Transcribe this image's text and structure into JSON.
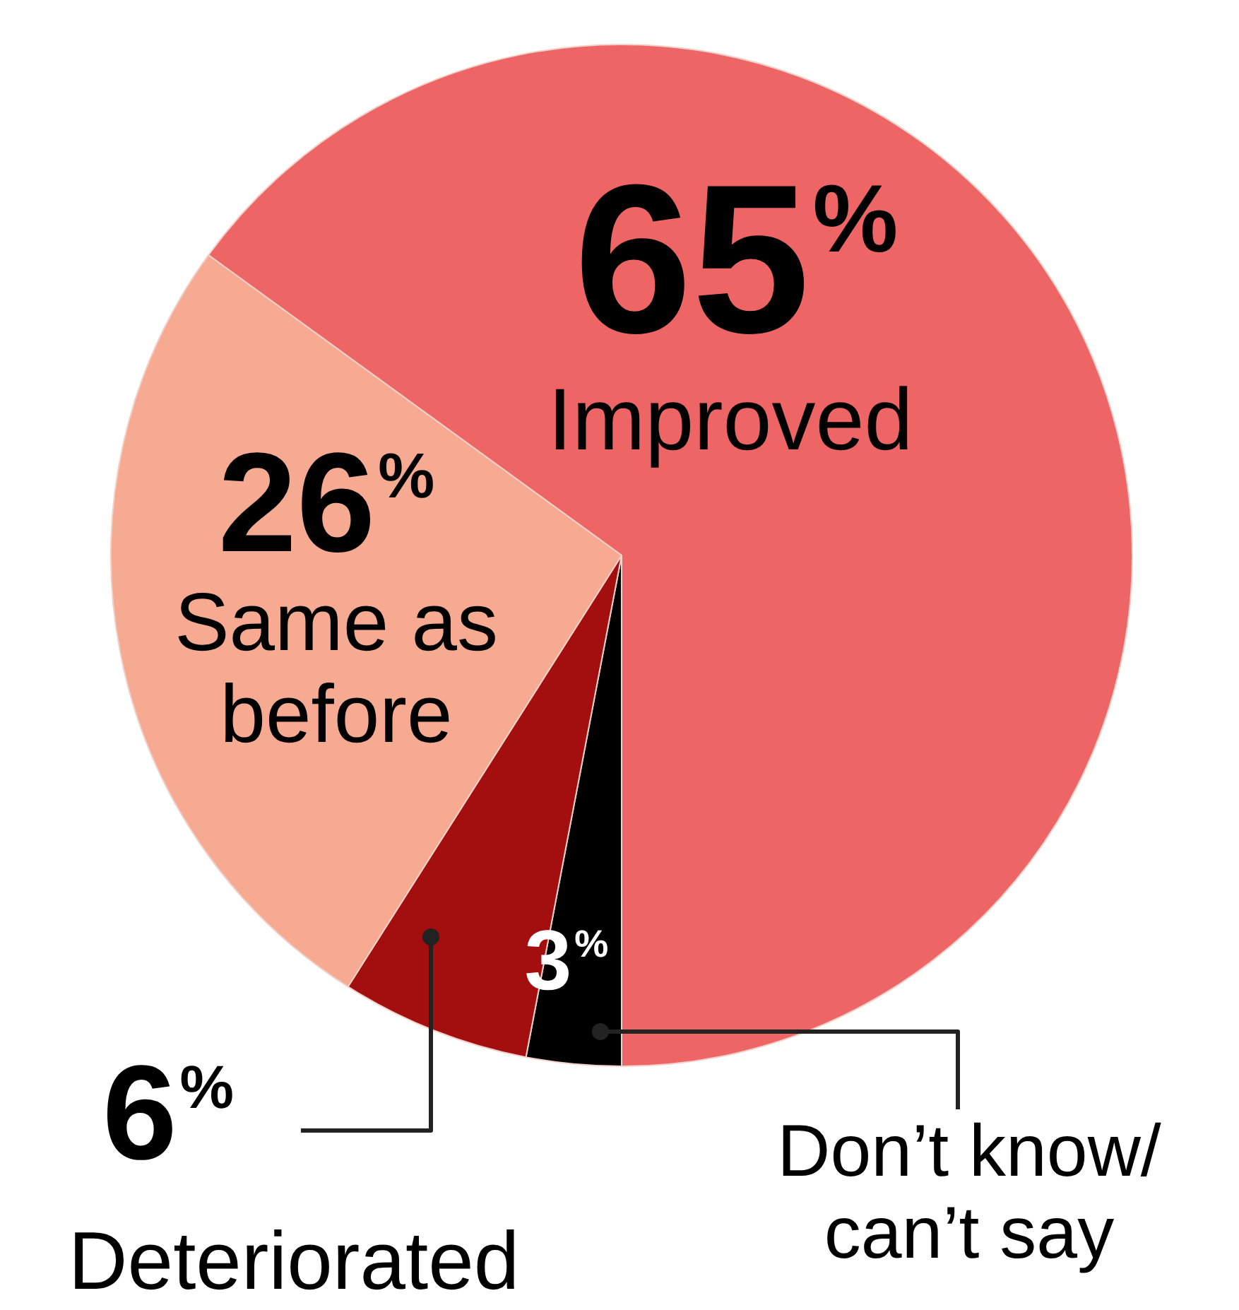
{
  "chart_data": {
    "type": "pie",
    "categories": [
      "Improved",
      "Don’t know/ can’t say",
      "Deteriorated",
      "Same as before"
    ],
    "values": [
      65,
      3,
      6,
      26
    ],
    "colors": [
      "#ee6565",
      "#000000",
      "#a30f0f",
      "#f6aa92"
    ],
    "value_labels": [
      "65%",
      "3%",
      "6%",
      "26%"
    ],
    "legend": false
  }
}
